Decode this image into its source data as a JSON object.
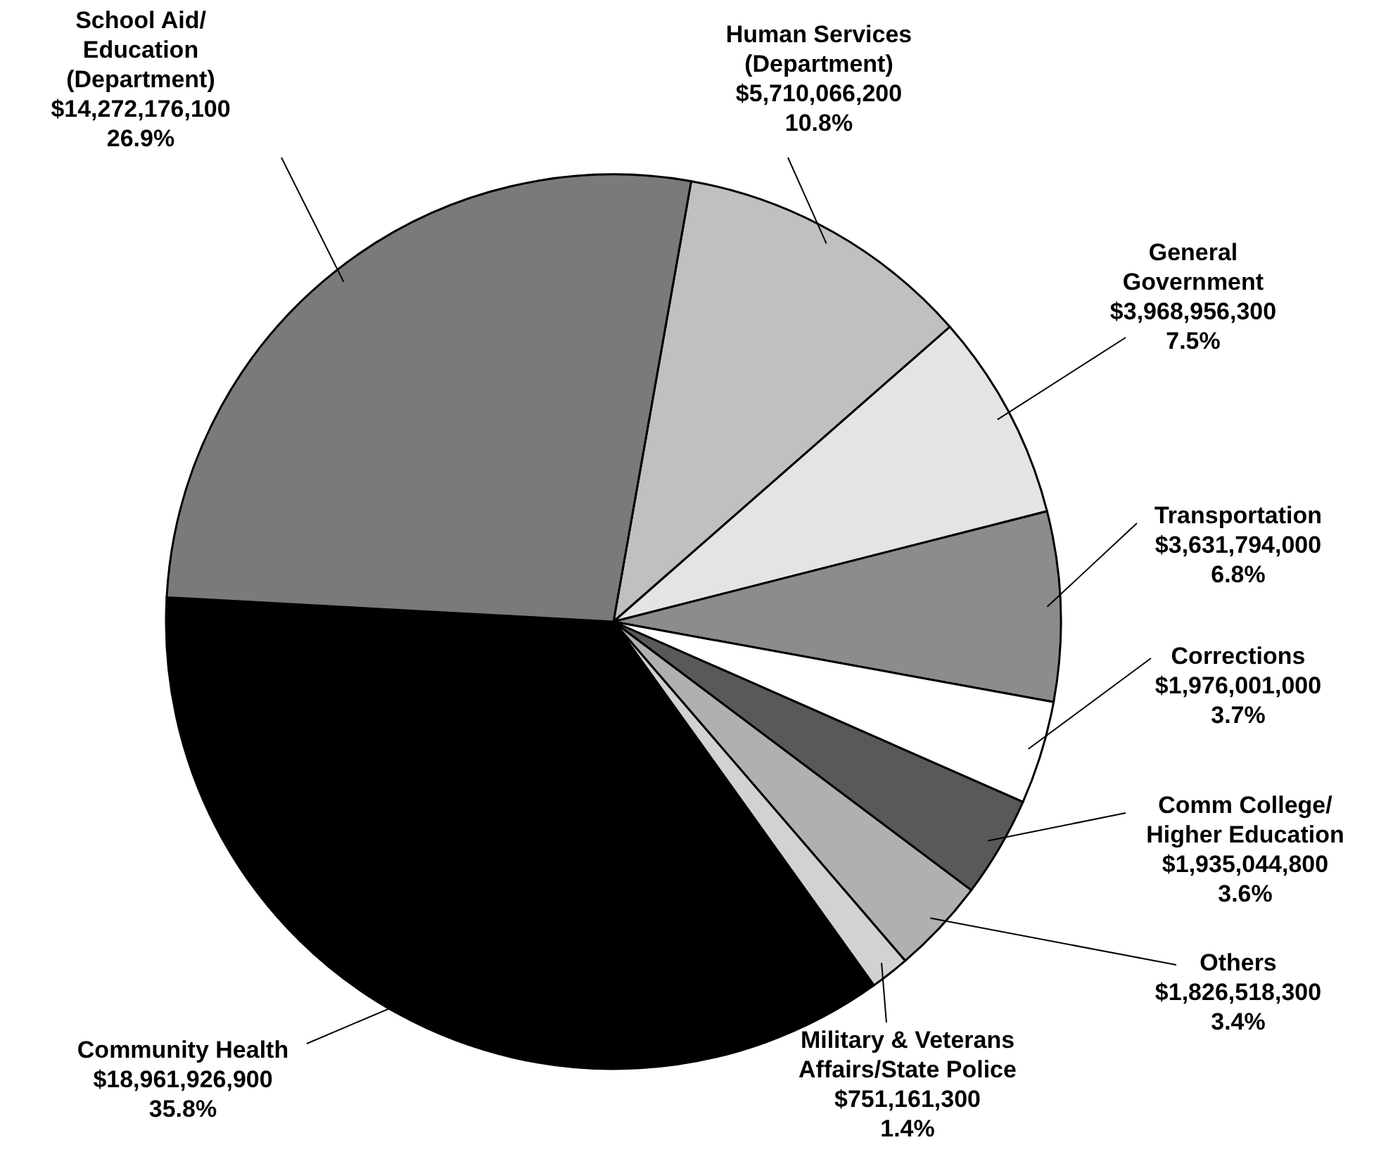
{
  "chart_data": {
    "type": "pie",
    "categories": [
      "Human Services\n(Department)",
      "General\nGovernment",
      "Transportation",
      "Corrections",
      "Comm College/\nHigher Education",
      "Others",
      "Military & Veterans\nAffairs/State Police",
      "Community Health",
      "School Aid/\nEducation\n(Department)"
    ],
    "values": [
      5710066200,
      3968956300,
      3631794000,
      1976001000,
      1935044800,
      1826518300,
      751161300,
      18961926900,
      14272176100
    ],
    "value_labels": [
      "$5,710,066,200\n10.8%",
      "$3,968,956,300\n7.5%",
      "$3,631,794,000\n6.8%",
      "$1,976,001,000\n3.7%",
      "$1,935,044,800\n3.6%",
      "$1,826,518,300\n3.4%",
      "$751,161,300\n1.4%",
      "$18,961,926,900\n35.8%",
      "$14,272,176,100\n26.9%"
    ],
    "colors": [
      "#c0c0c0",
      "#e4e4e4",
      "#8c8c8c",
      "#ffffff",
      "#595959",
      "#b0b0b0",
      "#d2d2d2",
      "#000000",
      "#7a7a7a"
    ]
  }
}
